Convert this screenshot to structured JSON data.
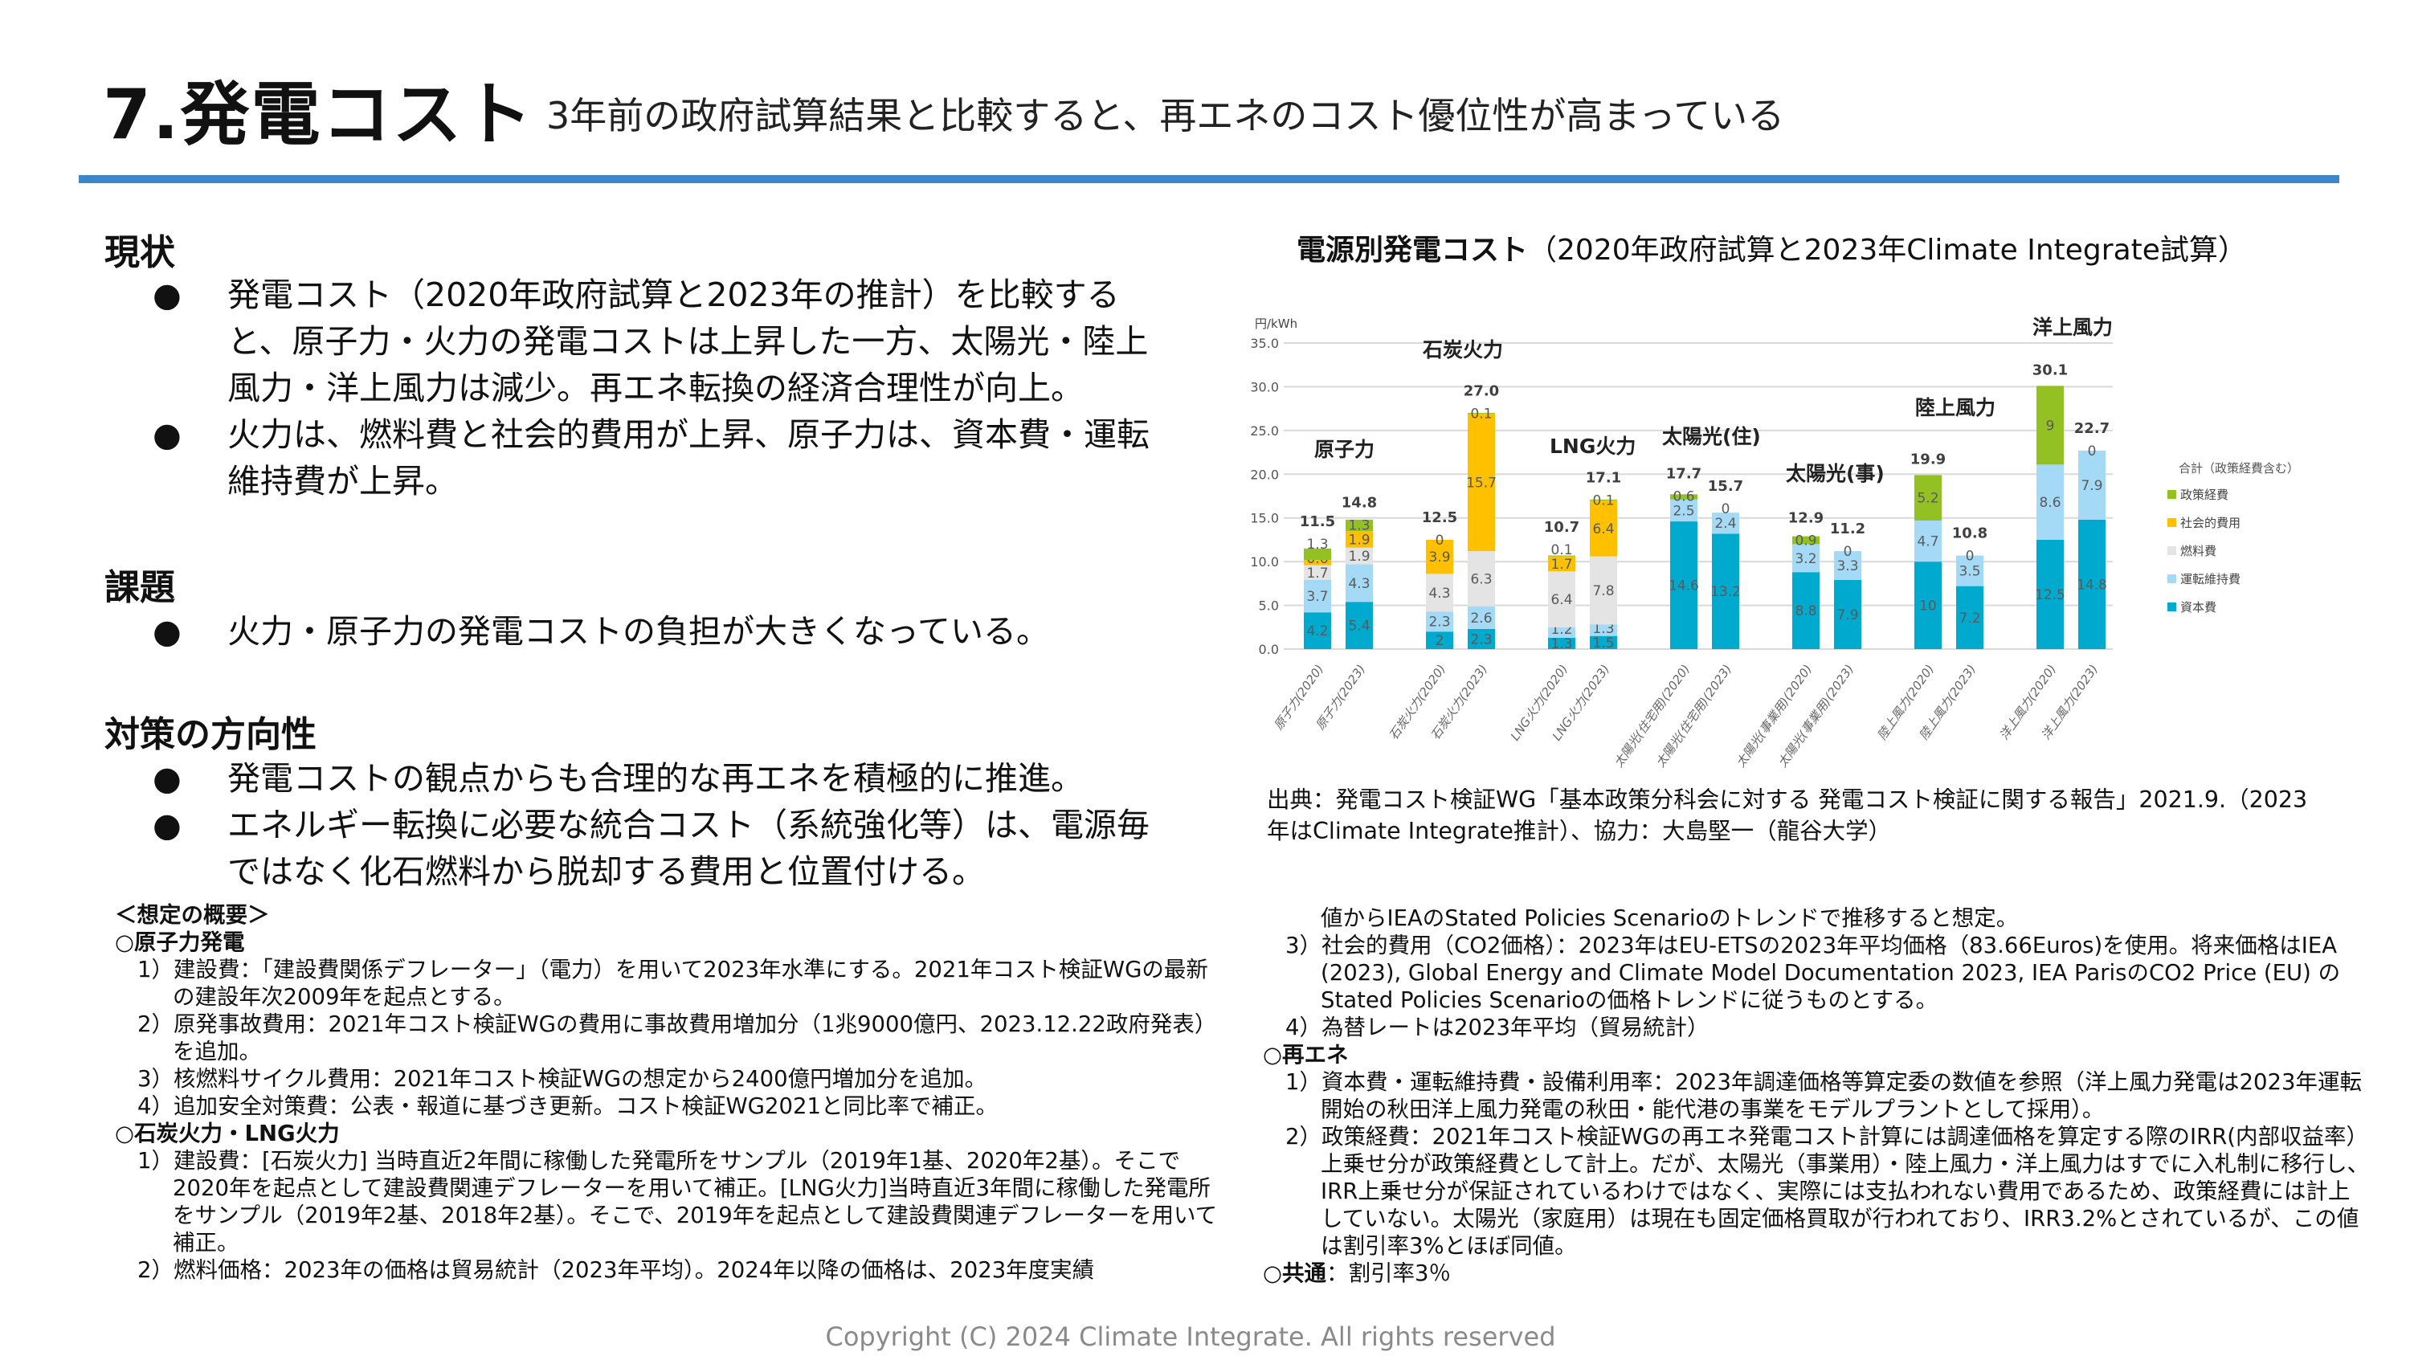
{
  "header": {
    "title": "7.発電コスト",
    "subtitle": "3年前の政府試算結果と比較すると、再エネのコスト優位性が高まっている"
  },
  "sections": [
    {
      "heading": "現状",
      "bullets": [
        "発電コスト（2020年政府試算と2023年の推計）を比較すると、原子力・火力の発電コストは上昇した一方、太陽光・陸上風力・洋上風力は減少。再エネ転換の経済合理性が向上。",
        "火力は、燃料費と社会的費用が上昇、原子力は、資本費・運転維持費が上昇。"
      ]
    },
    {
      "heading": "課題",
      "bullets": [
        "火力・原子力の発電コストの負担が大きくなっている。"
      ]
    },
    {
      "heading": "対策の方向性",
      "bullets": [
        "発電コストの観点からも合理的な再エネを積極的に推進。",
        "エネルギー転換に必要な統合コスト（系統強化等）は、電源毎ではなく化石燃料から脱却する費用と位置付ける。"
      ]
    }
  ],
  "bullet_glyph": "●",
  "notes_left": {
    "heading": "＜想定の概要＞",
    "nuclear_heading": "○原子力発電",
    "nuclear_items": [
      "1）建設費：「建設費関係デフレーター」（電力）を用いて2023年水準にする。2021年コスト検証WGの最新の建設年次2009年を起点とする。",
      "2）原発事故費用：2021年コスト検証WGの費用に事故費用増加分（1兆9000億円、2023.12.22政府発表）を追加。",
      "3）核燃料サイクル費用：2021年コスト検証WGの想定から2400億円増加分を追加。",
      "4）追加安全対策費：公表・報道に基づき更新。コスト検証WG2021と同比率で補正。"
    ],
    "thermal_heading": "○石炭火力・LNG火力",
    "thermal_items": [
      "1）建設費：[石炭火力] 当時直近2年間に稼働した発電所をサンプル（2019年1基、2020年2基）。そこで2020年を起点として建設費関連デフレーターを用いて補正。[LNG火力]当時直近3年間に稼働した発電所をサンプル（2019年2基、2018年2基）。そこで、2019年を起点として建設費関連デフレーターを用いて補正。",
      "2）燃料価格：2023年の価格は貿易統計（2023年平均）。2024年以降の価格は、2023年度実績"
    ]
  },
  "notes_right": {
    "continuation": "値からIEAのStated Policies Scenarioのトレンドで推移すると想定。",
    "thermal_items": [
      "3）社会的費用（CO2価格）：2023年はEU-ETSの2023年平均価格（83.66Euros)を使用。将来価格はIEA (2023), Global Energy and Climate Model Documentation 2023, IEA ParisのCO2 Price (EU) のStated Policies Scenarioの価格トレンドに従うものとする。",
      "4）為替レートは2023年平均（貿易統計）"
    ],
    "renewables_heading": "○再エネ",
    "renewables_items": [
      "1）資本費・運転維持費・設備利用率：2023年調達価格等算定委の数値を参照（洋上風力発電は2023年運転開始の秋田洋上風力発電の秋田・能代港の事業をモデルプラントとして採用）。",
      "2）政策経費：2021年コスト検証WGの再エネ発電コスト計算には調達価格を算定する際のIRR(内部収益率）上乗せ分が政策経費として計上。だが、太陽光（事業用）・陸上風力・洋上風力はすでに入札制に移行し、IRR上乗せ分が保証されているわけではなく、実際には支払われない費用であるため、政策経費には計上していない。太陽光（家庭用）は現在も固定価格買取が行われており、IRR3.2%とされているが、この値は割引率3%とほぼ同値。"
    ],
    "common_heading": "○共通",
    "common_text": "：割引率3％"
  },
  "chart_title_bold": "電源別発電コスト",
  "chart_title_rest": "（2020年政府試算と2023年Climate Integrate試算）",
  "source": "出典：発電コスト検証WG「基本政策分科会に対する 発電コスト検証に関する報告」2021.9.（2023年はClimate Integrate推計）、協力：大島堅一（龍谷大学）",
  "footer": "Copyright (C) 2024 Climate Integrate. All rights reserved",
  "chart_data": {
    "type": "bar",
    "stacked": true,
    "ylabel": "円/kWh",
    "ylim": [
      0,
      35
    ],
    "yticks": [
      "0.0",
      "5.0",
      "10.0",
      "15.0",
      "20.0",
      "25.0",
      "30.0",
      "35.0"
    ],
    "grid": true,
    "legend_position": "right",
    "legend_title": "合計（政策経費含む）",
    "categories": [
      "原子力(2020)",
      "原子力(2023)",
      "石炭火力(2020)",
      "石炭火力(2023)",
      "LNG火力(2020)",
      "LNG火力(2023)",
      "太陽光(住宅用)(2020)",
      "太陽光(住宅用)(2023)",
      "太陽光(事業用)(2020)",
      "太陽光(事業用)(2023)",
      "陸上風力(2020)",
      "陸上風力(2023)",
      "洋上風力(2020)",
      "洋上風力(2023)"
    ],
    "group_labels": [
      "原子力",
      "石炭火力",
      "LNG火力",
      "太陽光(住)",
      "太陽光(事)",
      "陸上風力",
      "洋上風力"
    ],
    "series": [
      {
        "name": "資本費",
        "color": "#00aacf",
        "values": [
          4.2,
          5.4,
          2.0,
          2.3,
          1.3,
          1.5,
          14.6,
          13.2,
          8.8,
          7.9,
          10.0,
          7.2,
          12.5,
          14.8
        ]
      },
      {
        "name": "運転維持費",
        "color": "#a5daf6",
        "values": [
          3.7,
          4.3,
          2.3,
          2.6,
          1.2,
          1.3,
          2.5,
          2.4,
          3.2,
          3.3,
          4.7,
          3.5,
          8.6,
          7.9
        ]
      },
      {
        "name": "燃料費",
        "color": "#e4e4e4",
        "values": [
          1.7,
          1.9,
          4.3,
          6.3,
          6.4,
          7.8,
          null,
          null,
          null,
          null,
          null,
          null,
          null,
          null
        ]
      },
      {
        "name": "社会的費用",
        "color": "#ffc000",
        "values": [
          0.6,
          1.9,
          3.9,
          15.7,
          1.7,
          6.4,
          null,
          null,
          null,
          null,
          null,
          null,
          null,
          null
        ]
      },
      {
        "name": "政策経費",
        "color": "#93c123",
        "values": [
          1.3,
          1.3,
          0.0,
          0.1,
          0.1,
          0.1,
          0.6,
          0.0,
          0.9,
          0.0,
          5.2,
          0.0,
          9,
          0.0
        ]
      }
    ],
    "totals": [
      11.5,
      14.8,
      12.5,
      27.0,
      10.7,
      17.1,
      17.7,
      15.7,
      12.9,
      11.2,
      19.9,
      10.8,
      30.1,
      22.7
    ],
    "legend_order": [
      "政策経費",
      "社会的費用",
      "燃料費",
      "運転維持費",
      "資本費"
    ]
  }
}
